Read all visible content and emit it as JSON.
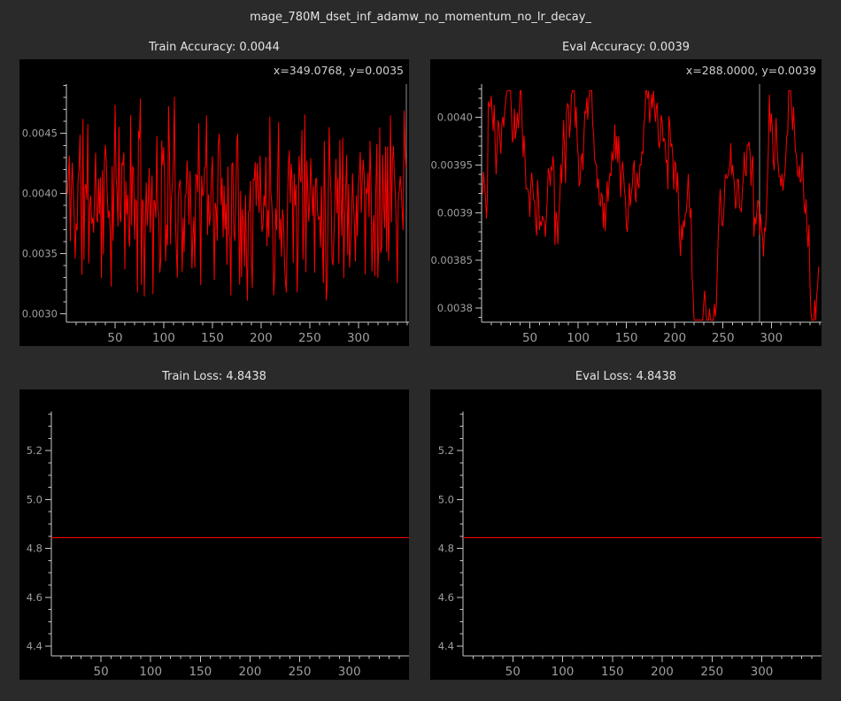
{
  "app": {
    "title": "mage_780M_dset_inf_adamw_no_momentum_no_lr_decay_",
    "colors": {
      "background": "#2a2a2a",
      "plot_background": "#000000",
      "line": "#ff0000",
      "axis": "#c8c8c8",
      "tick_label": "#9e9e9e",
      "title": "#e4e4e4",
      "readout": "#cfcfcf",
      "cursor": "#8f8f8f"
    }
  },
  "chart_data": [
    {
      "id": "train-accuracy",
      "type": "line",
      "title": "Train Accuracy: 0.0044",
      "reported_value": 0.0044,
      "cursor_readout": "x=349.0768, y=0.0035",
      "cursor_x": 349.0768,
      "cursor_y": 0.0035,
      "xlim": [
        0,
        352
      ],
      "ylim": [
        0.00293,
        0.00491
      ],
      "x_major_ticks": [
        50,
        100,
        150,
        200,
        250,
        300
      ],
      "x_tick_labels": [
        "50",
        "100",
        "150",
        "200",
        "250",
        "300"
      ],
      "x_minor_step": 10,
      "y_major_ticks": [
        0.003,
        0.0035,
        0.004,
        0.0045
      ],
      "y_tick_labels": [
        "0.0030",
        "0.0035",
        "0.0040",
        "0.0045"
      ],
      "y_minor_step": 0.0001,
      "grid": false,
      "legend": null,
      "series": {
        "name": "train_accuracy",
        "color": "#ff0000",
        "style": "white-noise",
        "n_points": 349,
        "x_start": 1,
        "mean": 0.00396,
        "amplitude": 0.00092,
        "observed_min": 0.003,
        "observed_max": 0.0049,
        "seed": 11
      }
    },
    {
      "id": "eval-accuracy",
      "type": "line",
      "title": "Eval Accuracy: 0.0039",
      "reported_value": 0.0039,
      "cursor_readout": "x=288.0000, y=0.0039",
      "cursor_x": 288.0,
      "cursor_y": 0.0039,
      "xlim": [
        0,
        352
      ],
      "ylim": [
        0.003785,
        0.004035
      ],
      "x_major_ticks": [
        50,
        100,
        150,
        200,
        250,
        300
      ],
      "x_tick_labels": [
        "50",
        "100",
        "150",
        "200",
        "250",
        "300"
      ],
      "x_minor_step": 10,
      "y_major_ticks": [
        0.0038,
        0.00385,
        0.0039,
        0.00395,
        0.004
      ],
      "y_tick_labels": [
        "0.0038",
        "0.00385",
        "0.0039",
        "0.00395",
        "0.0040"
      ],
      "y_minor_step": 1e-05,
      "grid": false,
      "legend": null,
      "series": {
        "name": "eval_accuracy",
        "color": "#ff0000",
        "style": "random-walk",
        "n_points": 349,
        "x_start": 1,
        "mean": 0.003915,
        "step": 3.5e-05,
        "reversion": 0.045,
        "clamp": [
          0.003787,
          0.004028
        ],
        "observed_min": 0.00379,
        "observed_max": 0.00403,
        "seed": 97
      }
    },
    {
      "id": "train-loss",
      "type": "line",
      "title": "Train Loss: 4.8438",
      "reported_value": 4.8438,
      "cursor_readout": null,
      "cursor_x": null,
      "xlim": [
        0,
        360
      ],
      "ylim": [
        4.36,
        5.36
      ],
      "x_major_ticks": [
        50,
        100,
        150,
        200,
        250,
        300
      ],
      "x_tick_labels": [
        "50",
        "100",
        "150",
        "200",
        "250",
        "300"
      ],
      "x_minor_step": 10,
      "y_major_ticks": [
        4.4,
        4.6,
        4.8,
        5.0,
        5.2
      ],
      "y_tick_labels": [
        "4.4",
        "4.6",
        "4.8",
        "5.0",
        "5.2"
      ],
      "y_minor_step": 0.05,
      "grid": false,
      "legend": null,
      "series": {
        "name": "train_loss",
        "color": "#ff0000",
        "style": "constant",
        "value": 4.8438,
        "x_start": 0,
        "x_end": 360
      }
    },
    {
      "id": "eval-loss",
      "type": "line",
      "title": "Eval Loss: 4.8438",
      "reported_value": 4.8438,
      "cursor_readout": null,
      "cursor_x": null,
      "xlim": [
        0,
        360
      ],
      "ylim": [
        4.36,
        5.36
      ],
      "x_major_ticks": [
        50,
        100,
        150,
        200,
        250,
        300
      ],
      "x_tick_labels": [
        "50",
        "100",
        "150",
        "200",
        "250",
        "300"
      ],
      "x_minor_step": 10,
      "y_major_ticks": [
        4.4,
        4.6,
        4.8,
        5.0,
        5.2
      ],
      "y_tick_labels": [
        "4.4",
        "4.6",
        "4.8",
        "5.0",
        "5.2"
      ],
      "y_minor_step": 0.05,
      "grid": false,
      "legend": null,
      "series": {
        "name": "eval_loss",
        "color": "#ff0000",
        "style": "constant",
        "value": 4.8438,
        "x_start": 0,
        "x_end": 360
      }
    }
  ]
}
